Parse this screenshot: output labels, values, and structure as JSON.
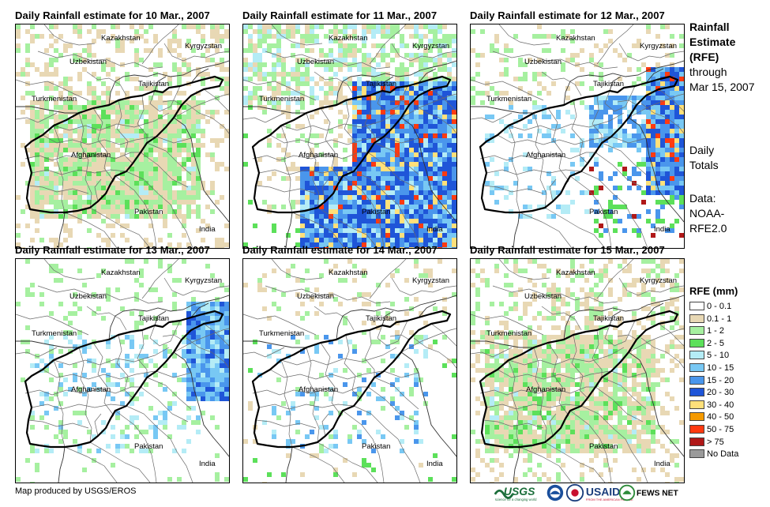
{
  "panels": [
    {
      "title": "Daily Rainfall estimate for 10 Mar., 2007",
      "pattern": "light-widespread"
    },
    {
      "title": "Daily Rainfall estimate for 11 Mar., 2007",
      "pattern": "heavy-east-south"
    },
    {
      "title": "Daily Rainfall estimate for 12 Mar., 2007",
      "pattern": "heavy-northeast"
    },
    {
      "title": "Daily Rainfall estimate for 13 Mar., 2007",
      "pattern": "moderate-northeast"
    },
    {
      "title": "Daily Rainfall estimate for 14 Mar., 2007",
      "pattern": "scattered"
    },
    {
      "title": "Daily Rainfall estimate for 15 Mar., 2007",
      "pattern": "light-widespread"
    }
  ],
  "country_labels": {
    "kazakhstan": "Kazakhstan",
    "kyrgyzstan": "Kyrgyzstan",
    "uzbekistan": "Uzbekistan",
    "tajikistan": "Tajikistan",
    "turkmenistan": "Turkmenistan",
    "afghanistan": "Afghanistan",
    "pakistan": "Pakistan",
    "india": "India"
  },
  "side": {
    "heading_line1": "Rainfall",
    "heading_line2": "Estimate",
    "heading_line3": "(RFE)",
    "through": "through",
    "date": "Mar 15, 2007",
    "daily": "Daily",
    "totals": "Totals",
    "data_label": "Data:",
    "source1": "NOAA-",
    "source2": "RFE2.0"
  },
  "legend": {
    "title": "RFE (mm)",
    "items": [
      {
        "label": "0 - 0.1",
        "color": "#ffffff"
      },
      {
        "label": "0.1 - 1",
        "color": "#e8d8b4"
      },
      {
        "label": "1 - 2",
        "color": "#a6f0a0"
      },
      {
        "label": "2 - 5",
        "color": "#5ce05a"
      },
      {
        "label": "5 - 10",
        "color": "#b4ecf6"
      },
      {
        "label": "10 - 15",
        "color": "#78c8f4"
      },
      {
        "label": "15 - 20",
        "color": "#4a96ec"
      },
      {
        "label": "20 - 30",
        "color": "#1f55d8"
      },
      {
        "label": "30 - 40",
        "color": "#ffe07a"
      },
      {
        "label": "40 - 50",
        "color": "#f59a00"
      },
      {
        "label": "50 - 75",
        "color": "#ff3a10"
      },
      {
        "label": "> 75",
        "color": "#b01818"
      },
      {
        "label": "No Data",
        "color": "#9a9a9a"
      }
    ]
  },
  "footer": "Map produced by USGS/EROS",
  "logos": {
    "usgs": "USGS",
    "usgs_tagline": "science for a changing world",
    "usaid": "USAID",
    "usaid_tagline": "FROM THE AMERICAN PEOPLE",
    "fews": "FEWS NET"
  }
}
